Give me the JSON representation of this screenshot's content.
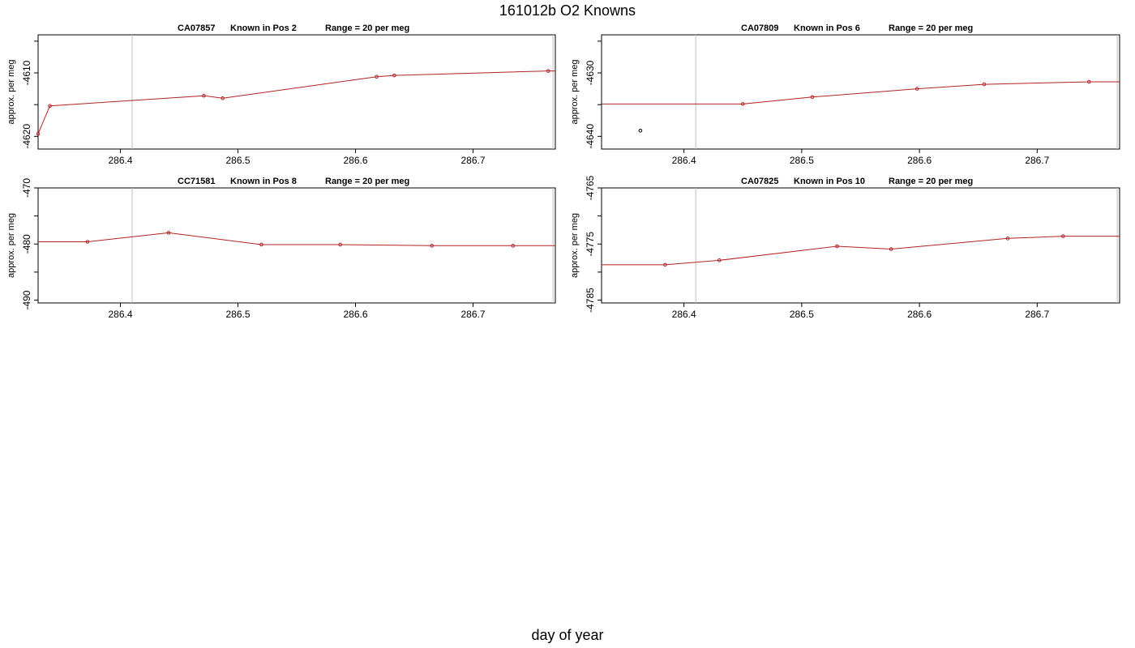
{
  "page": {
    "title": "161012b   O2 Knowns",
    "xlabel": "day of year"
  },
  "colors": {
    "line": "#b22222",
    "point_outline": "#b22222",
    "axis": "#000000",
    "vline": "#bfbfbf",
    "outlier_point": "#000000"
  },
  "chart_data": [
    {
      "type": "line",
      "title_parts": [
        "CA07857",
        "Known in Pos 2",
        "Range = 20 per meg"
      ],
      "xlabel": "",
      "ylabel": "approx. per meg",
      "xlim": [
        286.33,
        286.77
      ],
      "ylim": [
        -4622,
        -4604
      ],
      "xticks": [
        286.4,
        286.5,
        286.6,
        286.7
      ],
      "yticks": [
        -4620,
        -4610
      ],
      "minor_yticks": [
        -4615,
        -4605
      ],
      "vlines": [
        286.41,
        286.768
      ],
      "grid": false,
      "series": [
        {
          "x": [
            286.33,
            286.34,
            286.471,
            286.487,
            286.618,
            286.633,
            286.764,
            286.77
          ],
          "y": [
            -4619.6,
            -4615.2,
            -4613.6,
            -4614.0,
            -4610.6,
            -4610.4,
            -4609.7,
            -4609.7
          ],
          "markers": [
            true,
            true,
            true,
            true,
            true,
            true,
            true,
            false
          ]
        }
      ],
      "extra_points": []
    },
    {
      "type": "line",
      "title_parts": [
        "CA07809",
        "Known in Pos 6",
        "Range = 20 per meg"
      ],
      "xlabel": "",
      "ylabel": "approx. per meg",
      "xlim": [
        286.33,
        286.77
      ],
      "ylim": [
        -4642,
        -4624
      ],
      "xticks": [
        286.4,
        286.5,
        286.6,
        286.7
      ],
      "yticks": [
        -4640,
        -4630
      ],
      "minor_yticks": [
        -4635,
        -4625
      ],
      "vlines": [
        286.41,
        286.768
      ],
      "grid": false,
      "series": [
        {
          "x": [
            286.33,
            286.45,
            286.509,
            286.598,
            286.655,
            286.744,
            286.77
          ],
          "y": [
            -4634.9,
            -4634.9,
            -4633.8,
            -4632.5,
            -4631.8,
            -4631.4,
            -4631.4
          ],
          "markers": [
            false,
            true,
            true,
            true,
            true,
            true,
            false
          ]
        }
      ],
      "extra_points": [
        {
          "x": 286.363,
          "y": -4639.1
        }
      ]
    },
    {
      "type": "line",
      "title_parts": [
        "CC71581",
        "Known in Pos 8",
        "Range = 20 per meg"
      ],
      "xlabel": "",
      "ylabel": "approx. per meg",
      "xlim": [
        286.33,
        286.77
      ],
      "ylim": [
        -490.5,
        -470
      ],
      "xticks": [
        286.4,
        286.5,
        286.6,
        286.7
      ],
      "yticks": [
        -490,
        -480,
        -470
      ],
      "minor_yticks": [
        -485,
        -475
      ],
      "vlines": [
        286.41,
        286.768
      ],
      "grid": false,
      "series": [
        {
          "x": [
            286.33,
            286.372,
            286.441,
            286.52,
            286.587,
            286.665,
            286.734,
            286.77
          ],
          "y": [
            -479.6,
            -479.6,
            -478.0,
            -480.1,
            -480.1,
            -480.3,
            -480.3,
            -480.3
          ],
          "markers": [
            false,
            true,
            true,
            true,
            true,
            true,
            true,
            false
          ]
        }
      ],
      "extra_points": []
    },
    {
      "type": "line",
      "title_parts": [
        "CA07825",
        "Known in Pos 10",
        "Range = 20 per meg"
      ],
      "xlabel": "",
      "ylabel": "approx. per meg",
      "xlim": [
        286.33,
        286.77
      ],
      "ylim": [
        -4785.5,
        -4765
      ],
      "xticks": [
        286.4,
        286.5,
        286.6,
        286.7
      ],
      "yticks": [
        -4785,
        -4775,
        -4765
      ],
      "minor_yticks": [
        -4780,
        -4770
      ],
      "vlines": [
        286.41,
        286.768
      ],
      "grid": false,
      "series": [
        {
          "x": [
            286.33,
            286.384,
            286.43,
            286.53,
            286.576,
            286.675,
            286.722,
            286.77
          ],
          "y": [
            -4778.7,
            -4778.7,
            -4777.9,
            -4775.4,
            -4775.9,
            -4774.0,
            -4773.6,
            -4773.6
          ],
          "markers": [
            false,
            true,
            true,
            true,
            true,
            true,
            true,
            false
          ]
        }
      ],
      "extra_points": []
    }
  ]
}
